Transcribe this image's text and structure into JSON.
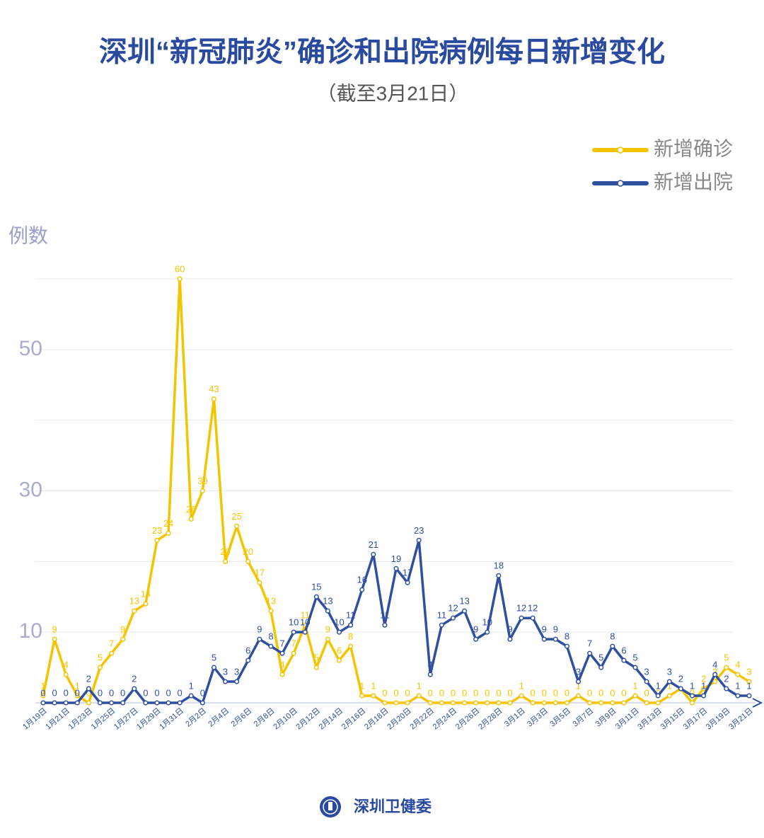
{
  "chart_data": {
    "type": "line",
    "title": "深圳“新冠肺炎”确诊和出院病例每日新增变化",
    "subtitle": "（截至3月21日）",
    "y_label": "例数",
    "source": "深圳卫健委",
    "categories": [
      "1月19日",
      null,
      "1月21日",
      null,
      "1月23日",
      null,
      "1月25日",
      null,
      "1月27日",
      null,
      "1月29日",
      null,
      "1月31日",
      null,
      "2月2日",
      null,
      "2月4日",
      null,
      "2月6日",
      null,
      "2月8日",
      null,
      "2月10日",
      null,
      "2月12日",
      null,
      "2月14日",
      null,
      "2月16日",
      null,
      "2月18日",
      null,
      "2月20日",
      null,
      "2月22日",
      null,
      "2月24日",
      null,
      "2月26日",
      null,
      "2月28日",
      null,
      "3月1日",
      null,
      "3月3日",
      null,
      "3月5日",
      null,
      "3月7日",
      null,
      "3月9日",
      null,
      "3月11日",
      null,
      "3月13日",
      null,
      "3月15日",
      null,
      "3月17日",
      null,
      "3月19日",
      null,
      "3月21日"
    ],
    "series": [
      {
        "name": "新增确诊",
        "color": "#f5c400",
        "values": [
          1,
          9,
          4,
          1,
          0,
          5,
          7,
          9,
          13,
          14,
          23,
          24,
          60,
          26,
          30,
          43,
          20,
          25,
          20,
          17,
          13,
          4,
          7,
          11,
          5,
          9,
          6,
          8,
          1,
          1,
          0,
          0,
          0,
          1,
          0,
          0,
          0,
          0,
          0,
          0,
          0,
          0,
          1,
          0,
          0,
          0,
          0,
          1,
          0,
          0,
          0,
          0,
          1,
          0,
          0,
          1,
          2,
          0,
          2,
          3,
          5,
          4,
          3
        ]
      },
      {
        "name": "新增出院",
        "color": "#2f4fa0",
        "values": [
          0,
          0,
          0,
          0,
          2,
          0,
          0,
          0,
          2,
          0,
          0,
          0,
          0,
          1,
          0,
          5,
          3,
          3,
          6,
          9,
          8,
          7,
          10,
          10,
          15,
          13,
          10,
          11,
          16,
          21,
          11,
          19,
          17,
          23,
          4,
          11,
          12,
          13,
          9,
          10,
          18,
          9,
          12,
          12,
          9,
          9,
          8,
          3,
          7,
          5,
          8,
          6,
          5,
          3,
          1,
          3,
          2,
          1,
          1,
          4,
          2,
          1,
          1
        ]
      }
    ],
    "ylim": [
      0,
      60
    ],
    "yticks": [
      10,
      30,
      50
    ],
    "minor_yticks": [
      20,
      40,
      60
    ],
    "grid": true,
    "legend": "upper right"
  }
}
